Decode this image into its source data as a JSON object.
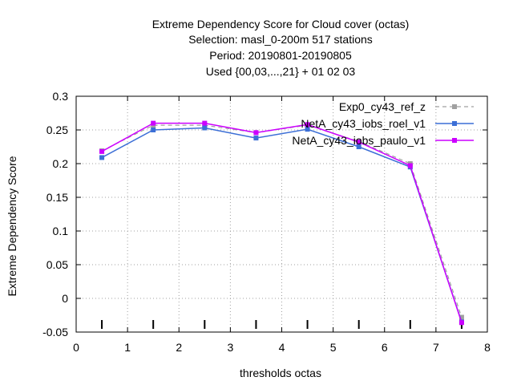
{
  "chart_data": {
    "type": "line",
    "title_lines": [
      "Extreme Dependency Score  for Cloud cover (octas)",
      "Selection: masl_0-200m    517 stations",
      "Period: 20190801-20190805",
      "Used {00,03,...,21} + 01 02 03"
    ],
    "xlabel": "thresholds octas",
    "ylabel": "Extreme Dependency Score",
    "xlim": [
      0,
      8
    ],
    "ylim": [
      -0.05,
      0.3
    ],
    "xticks": [
      "0",
      "1",
      "2",
      "3",
      "4",
      "5",
      "6",
      "7",
      "8"
    ],
    "yticks": [
      "-0.05",
      "0",
      "0.05",
      "0.1",
      "0.15",
      "0.2",
      "0.25",
      "0.3"
    ],
    "grid": true,
    "legend_position": "top-right",
    "x": [
      0.5,
      1.5,
      2.5,
      3.5,
      4.5,
      5.5,
      6.5,
      7.5
    ],
    "series": [
      {
        "name": "Exp0_cy43_ref_z",
        "values": [
          0.219,
          0.257,
          0.257,
          0.246,
          0.257,
          0.233,
          0.2,
          -0.028
        ],
        "color": "#a0a0a0",
        "dash": true,
        "marker": "square"
      },
      {
        "name": "NetA_cy43_iobs_roel_v1",
        "values": [
          0.209,
          0.25,
          0.253,
          0.238,
          0.251,
          0.225,
          0.195,
          -0.035
        ],
        "color": "#3c6fd6",
        "dash": false,
        "marker": "square"
      },
      {
        "name": "NetA_cy43_iobs_paulo_v1",
        "values": [
          0.218,
          0.26,
          0.26,
          0.246,
          0.258,
          0.232,
          0.197,
          -0.036
        ],
        "color": "#cc00ff",
        "dash": false,
        "marker": "square"
      }
    ]
  }
}
